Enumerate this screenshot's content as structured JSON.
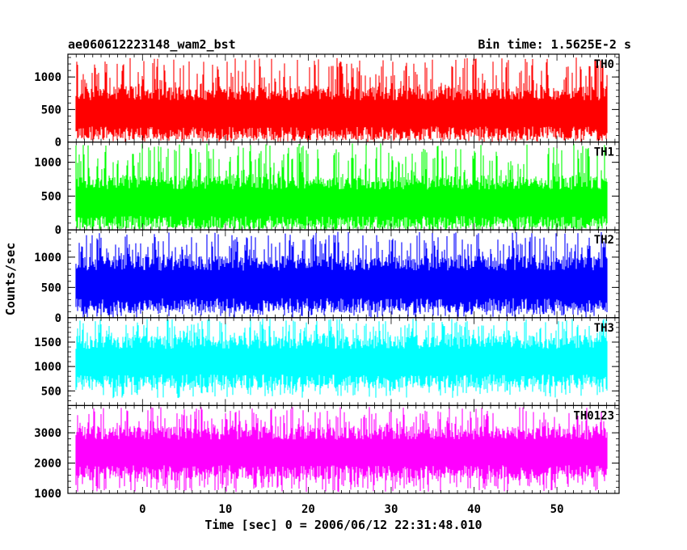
{
  "header": {
    "left_title": "ae060612223148_wam2_bst",
    "right_title": "Bin time: 1.5625E-2 s"
  },
  "chart_data": {
    "type": "line",
    "xlabel": "Time [sec] 0 = 2006/06/12 22:31:48.010",
    "ylabel": "Counts/sec",
    "xlim": [
      -9,
      57.5
    ],
    "x_data_range": [
      -8,
      56
    ],
    "bin_time_s": 0.015625,
    "x_ticks": [
      0,
      10,
      20,
      30,
      40,
      50
    ],
    "grid": false,
    "panels": [
      {
        "name": "TH0",
        "color": "#ff0000",
        "ylim": [
          0,
          1350
        ],
        "y_ticks": [
          0,
          500,
          1000
        ],
        "typical_range": [
          130,
          750
        ],
        "peak_range": [
          0,
          1300
        ]
      },
      {
        "name": "TH1",
        "color": "#00ff00",
        "ylim": [
          0,
          1300
        ],
        "y_ticks": [
          0,
          500,
          1000
        ],
        "typical_range": [
          100,
          700
        ],
        "peak_range": [
          0,
          1280
        ]
      },
      {
        "name": "TH2",
        "color": "#0000ff",
        "ylim": [
          0,
          1450
        ],
        "y_ticks": [
          0,
          500,
          1000
        ],
        "typical_range": [
          200,
          900
        ],
        "peak_range": [
          0,
          1420
        ]
      },
      {
        "name": "TH3",
        "color": "#00ffff",
        "ylim": [
          200,
          2000
        ],
        "y_ticks": [
          500,
          1000,
          1500
        ],
        "typical_range": [
          700,
          1500
        ],
        "peak_range": [
          350,
          1980
        ]
      },
      {
        "name": "TH0123",
        "color": "#ff00ff",
        "ylim": [
          1000,
          3900
        ],
        "y_ticks": [
          1000,
          2000,
          3000
        ],
        "typical_range": [
          1700,
          3000
        ],
        "peak_range": [
          1050,
          3850
        ]
      }
    ]
  }
}
